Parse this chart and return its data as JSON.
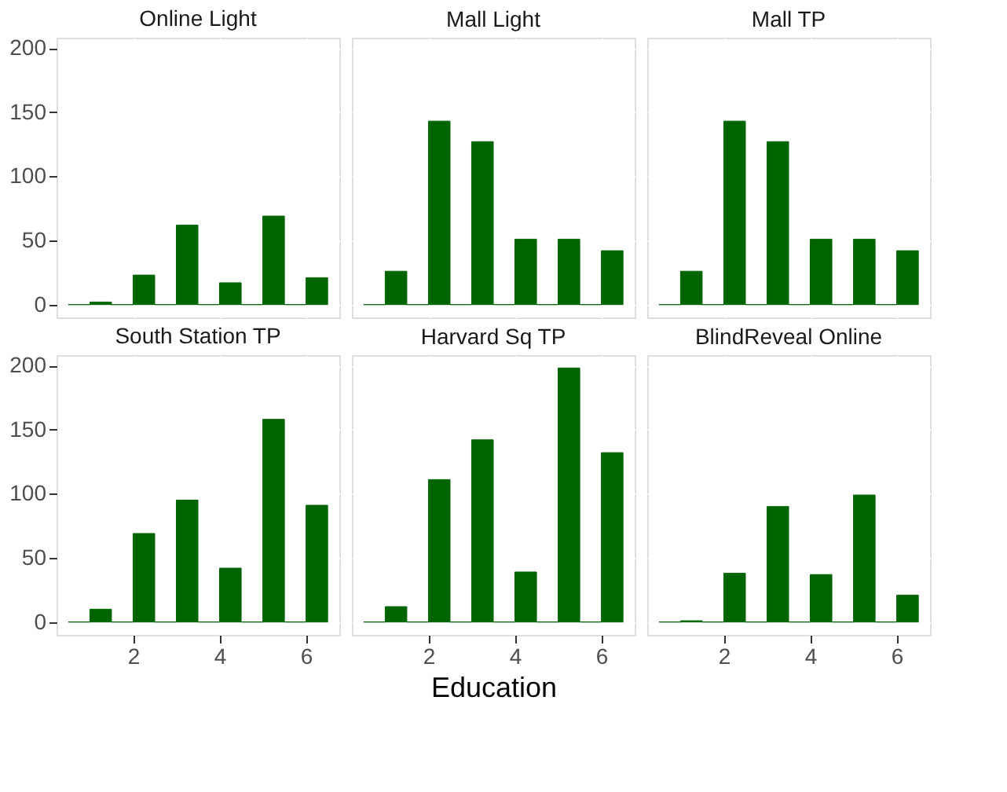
{
  "chart_data": [
    {
      "type": "histogram",
      "title": "Online Light",
      "bins": [
        0.5,
        1,
        1.5,
        2,
        2.5,
        3,
        3.5,
        4,
        4.5,
        5,
        5.5,
        6,
        6.5
      ],
      "values": [
        0,
        2,
        0,
        23,
        0,
        62,
        0,
        17,
        0,
        69,
        0,
        21
      ],
      "color": "#006400",
      "xlim": [
        0.23,
        6.77
      ],
      "ylim": [
        -10,
        208
      ],
      "xticks": [
        2,
        4,
        6
      ],
      "yticks": [
        0,
        50,
        100,
        150,
        200
      ],
      "grid": true,
      "tick_labels": "y"
    },
    {
      "type": "histogram",
      "title": "Mall Light",
      "bins": [
        0.5,
        1,
        1.5,
        2,
        2.5,
        3,
        3.5,
        4,
        4.5,
        5,
        5.5,
        6,
        6.5
      ],
      "values": [
        0,
        26,
        0,
        143,
        0,
        127,
        0,
        51,
        0,
        51,
        0,
        42
      ],
      "color": "#006400",
      "xlim": [
        0.23,
        6.77
      ],
      "ylim": [
        -10,
        208
      ],
      "xticks": [
        2,
        4,
        6
      ],
      "yticks": [
        0,
        50,
        100,
        150,
        200
      ],
      "grid": true,
      "tick_labels": false
    },
    {
      "type": "histogram",
      "title": "Mall TP",
      "bins": [
        0.5,
        1,
        1.5,
        2,
        2.5,
        3,
        3.5,
        4,
        4.5,
        5,
        5.5,
        6,
        6.5
      ],
      "values": [
        0,
        26,
        0,
        143,
        0,
        127,
        0,
        51,
        0,
        51,
        0,
        42
      ],
      "color": "#006400",
      "xlim": [
        0.23,
        6.77
      ],
      "ylim": [
        -10,
        208
      ],
      "xticks": [
        2,
        4,
        6
      ],
      "yticks": [
        0,
        50,
        100,
        150,
        200
      ],
      "grid": true,
      "tick_labels": false
    },
    {
      "type": "histogram",
      "title": "South Station TP",
      "bins": [
        0.5,
        1,
        1.5,
        2,
        2.5,
        3,
        3.5,
        4,
        4.5,
        5,
        5.5,
        6,
        6.5
      ],
      "values": [
        0,
        10,
        0,
        69,
        0,
        95,
        0,
        42,
        0,
        158,
        0,
        91
      ],
      "color": "#006400",
      "xlim": [
        0.23,
        6.77
      ],
      "ylim": [
        -10,
        208
      ],
      "xticks": [
        2,
        4,
        6
      ],
      "yticks": [
        0,
        50,
        100,
        150,
        200
      ],
      "grid": true
    },
    {
      "type": "histogram",
      "title": "Harvard Sq TP",
      "xlabel": "Education",
      "bins": [
        0.5,
        1,
        1.5,
        2,
        2.5,
        3,
        3.5,
        4,
        4.5,
        5,
        5.5,
        6,
        6.5
      ],
      "values": [
        0,
        12,
        0,
        111,
        0,
        142,
        0,
        39,
        0,
        198,
        0,
        132
      ],
      "color": "#006400",
      "xlim": [
        0.23,
        6.77
      ],
      "ylim": [
        -10,
        208
      ],
      "xticks": [
        2,
        4,
        6
      ],
      "yticks": [
        0,
        50,
        100,
        150,
        200
      ],
      "grid": true,
      "tick_labels": "x"
    },
    {
      "type": "histogram",
      "title": "BlindReveal Online",
      "bins": [
        0.5,
        1,
        1.5,
        2,
        2.5,
        3,
        3.5,
        4,
        4.5,
        5,
        5.5,
        6,
        6.5
      ],
      "values": [
        0,
        1,
        0,
        38,
        0,
        90,
        0,
        37,
        0,
        99,
        0,
        21
      ],
      "color": "#006400",
      "xlim": [
        0.23,
        6.77
      ],
      "ylim": [
        -10,
        208
      ],
      "xticks": [
        2,
        4,
        6
      ],
      "yticks": [
        0,
        50,
        100,
        150,
        200
      ],
      "grid": true,
      "tick_labels": "x"
    }
  ]
}
